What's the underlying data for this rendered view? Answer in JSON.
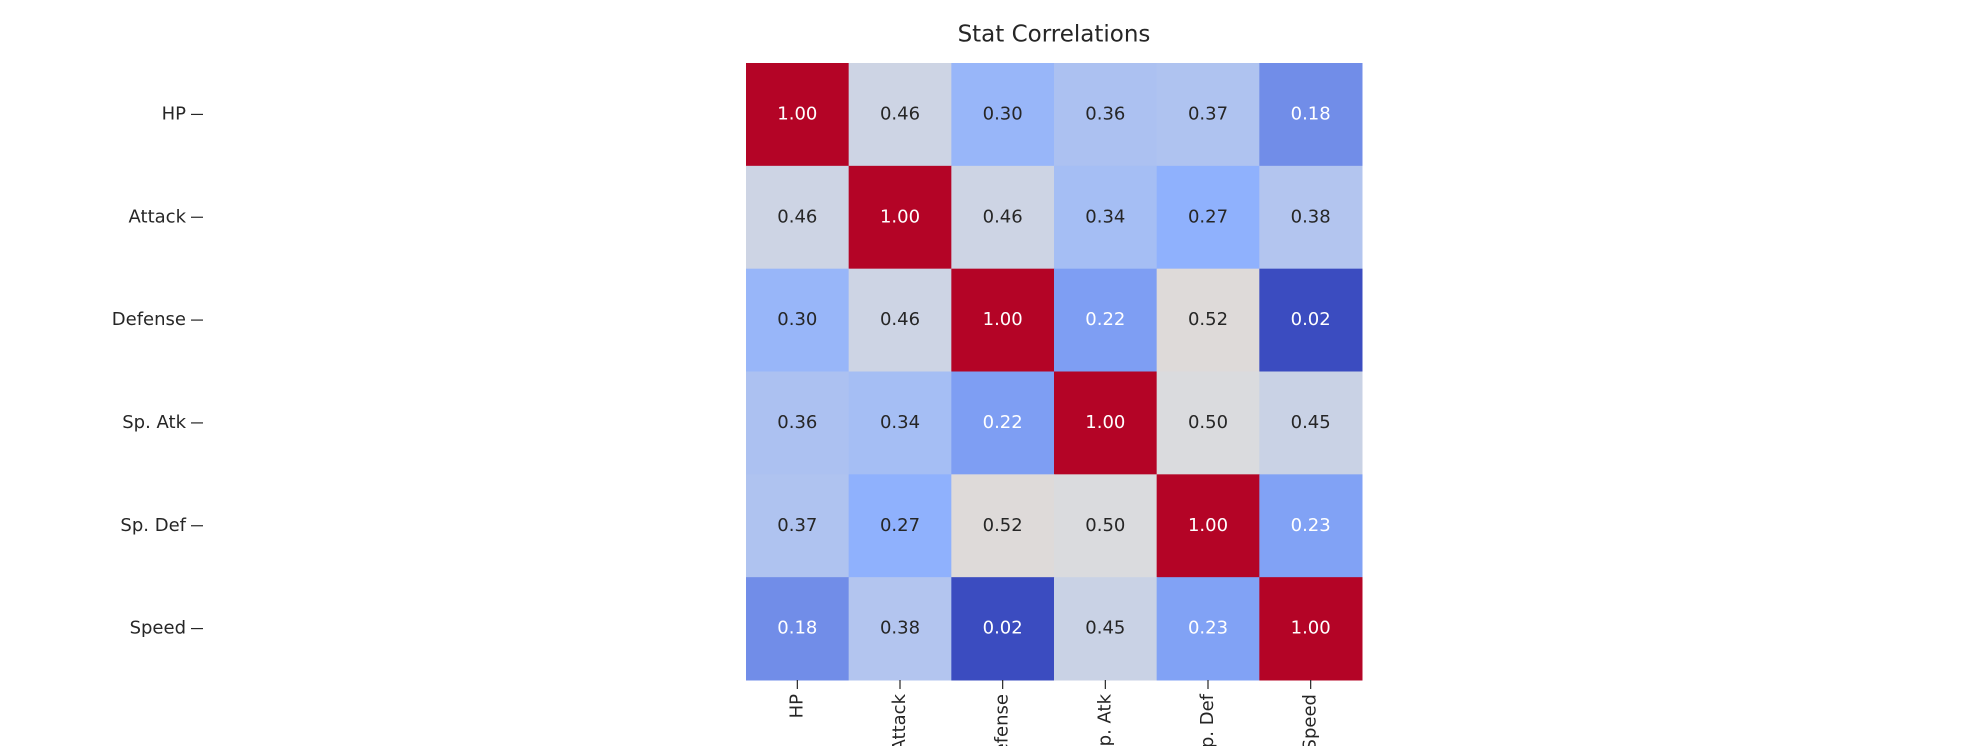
{
  "chart_data": {
    "type": "heatmap",
    "title": "Stat Correlations",
    "categories": [
      "HP",
      "Attack",
      "Defense",
      "Sp. Atk",
      "Sp. Def",
      "Speed"
    ],
    "y_categories": [
      "HP",
      "Attack",
      "Defense",
      "Sp. Atk",
      "Sp. Def",
      "Speed"
    ],
    "values": [
      [
        1.0,
        0.46,
        0.3,
        0.36,
        0.37,
        0.18
      ],
      [
        0.46,
        1.0,
        0.46,
        0.34,
        0.27,
        0.38
      ],
      [
        0.3,
        0.46,
        1.0,
        0.22,
        0.52,
        0.02
      ],
      [
        0.36,
        0.34,
        0.22,
        1.0,
        0.5,
        0.45
      ],
      [
        0.37,
        0.27,
        0.52,
        0.5,
        1.0,
        0.23
      ],
      [
        0.18,
        0.38,
        0.02,
        0.45,
        0.23,
        1.0
      ]
    ],
    "value_labels": [
      [
        "1.00",
        "0.46",
        "0.30",
        "0.36",
        "0.37",
        "0.18"
      ],
      [
        "0.46",
        "1.00",
        "0.46",
        "0.34",
        "0.27",
        "0.38"
      ],
      [
        "0.30",
        "0.46",
        "1.00",
        "0.22",
        "0.52",
        "0.02"
      ],
      [
        "0.36",
        "0.34",
        "0.22",
        "1.00",
        "0.50",
        "0.45"
      ],
      [
        "0.37",
        "0.27",
        "0.52",
        "0.50",
        "1.00",
        "0.23"
      ],
      [
        "0.18",
        "0.38",
        "0.02",
        "0.45",
        "0.23",
        "1.00"
      ]
    ],
    "colormap": "coolwarm",
    "clim": [
      0.02,
      1.0
    ]
  }
}
